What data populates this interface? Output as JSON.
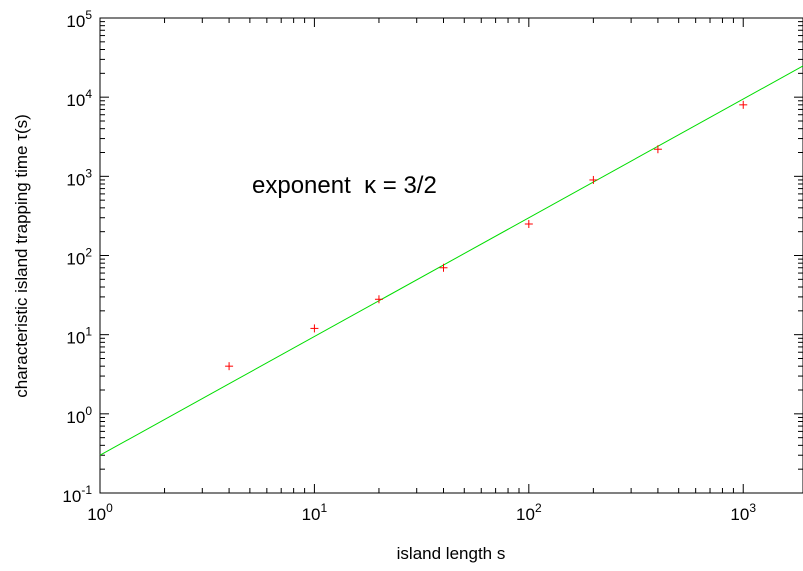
{
  "chart_data": {
    "type": "scatter",
    "xlabel": "island length s",
    "ylabel": "characteristic island trapping time τ(s)",
    "x_scale": "log",
    "y_scale": "log",
    "xlim": [
      1,
      1900
    ],
    "ylim": [
      0.1,
      100000
    ],
    "x_ticks": [
      {
        "base": "10",
        "exp": "0",
        "value": 1
      },
      {
        "base": "10",
        "exp": "1",
        "value": 10
      },
      {
        "base": "10",
        "exp": "2",
        "value": 100
      },
      {
        "base": "10",
        "exp": "3",
        "value": 1000
      }
    ],
    "y_ticks": [
      {
        "base": "10",
        "exp": "-1",
        "value": 0.1
      },
      {
        "base": "10",
        "exp": "0",
        "value": 1
      },
      {
        "base": "10",
        "exp": "1",
        "value": 10
      },
      {
        "base": "10",
        "exp": "2",
        "value": 100
      },
      {
        "base": "10",
        "exp": "3",
        "value": 1000
      },
      {
        "base": "10",
        "exp": "4",
        "value": 10000
      },
      {
        "base": "10",
        "exp": "5",
        "value": 100000
      }
    ],
    "grid": false,
    "annotation": "exponent  κ = 3/2",
    "series": [
      {
        "kind": "points",
        "marker": "+",
        "color": "#ff0000",
        "x": [
          4,
          10,
          20,
          40,
          100,
          200,
          400,
          1000
        ],
        "y": [
          4,
          12,
          28,
          70,
          250,
          900,
          2200,
          8000
        ]
      },
      {
        "kind": "line",
        "color": "#00dd00",
        "x": [
          1,
          1900
        ],
        "y": [
          0.3,
          24800
        ]
      }
    ]
  }
}
